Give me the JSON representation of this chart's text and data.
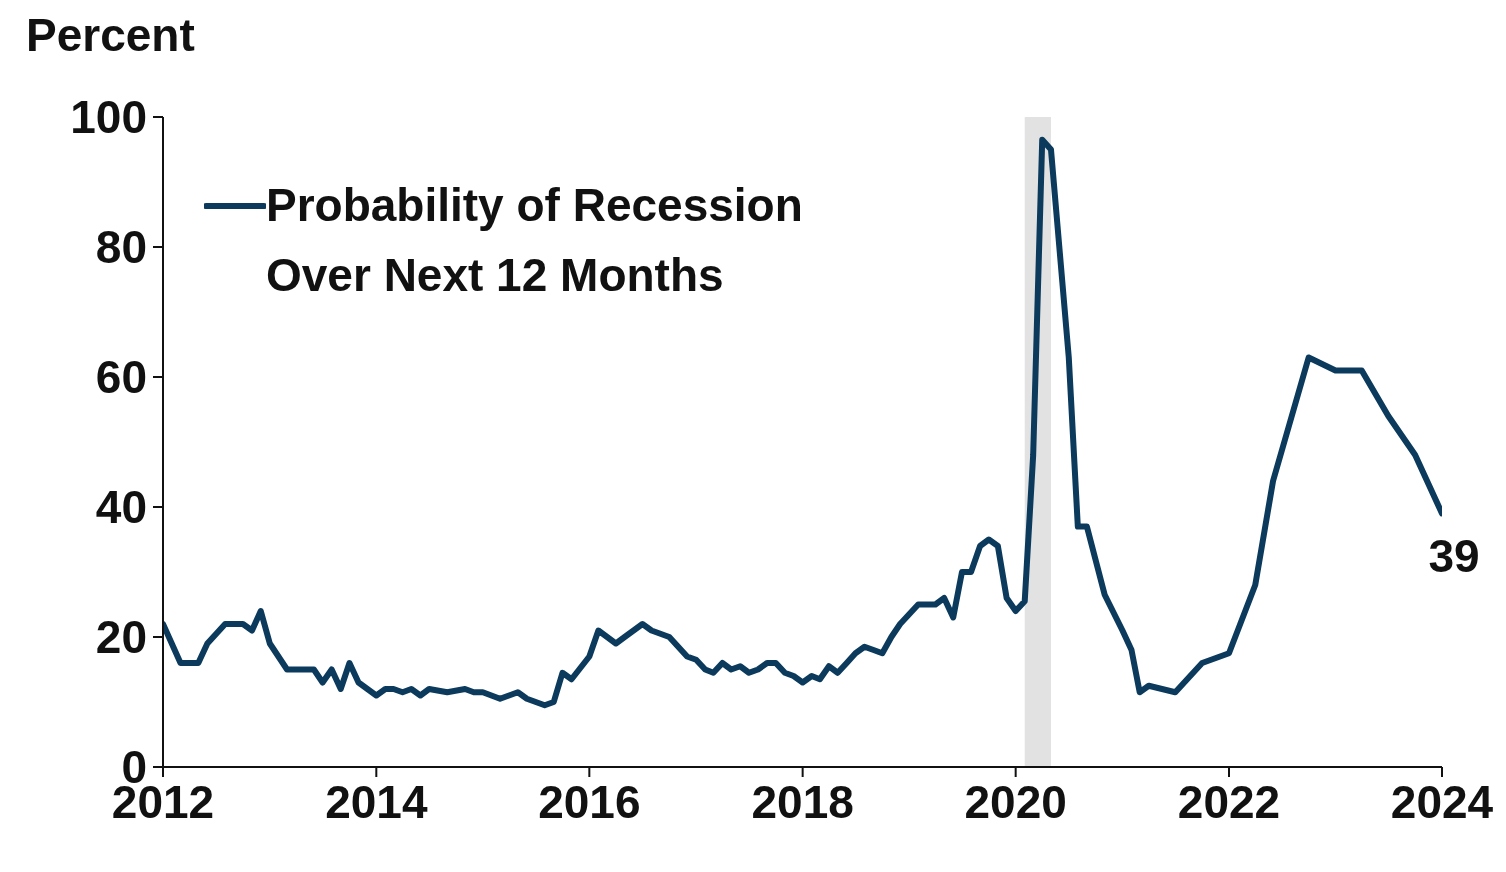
{
  "chart_data": {
    "type": "line",
    "ylabel": "Percent",
    "x": [
      "2012-01",
      "2012-03",
      "2012-05",
      "2012-06",
      "2012-08",
      "2012-10",
      "2012-11",
      "2012-12",
      "2013-01",
      "2013-03",
      "2013-06",
      "2013-07",
      "2013-08",
      "2013-09",
      "2013-10",
      "2013-11",
      "2014-01",
      "2014-02",
      "2014-03",
      "2014-04",
      "2014-05",
      "2014-06",
      "2014-07",
      "2014-09",
      "2014-11",
      "2014-12",
      "2015-01",
      "2015-03",
      "2015-05",
      "2015-06",
      "2015-08",
      "2015-09",
      "2015-10",
      "2015-11",
      "2016-01",
      "2016-02",
      "2016-04",
      "2016-05",
      "2016-07",
      "2016-08",
      "2016-10",
      "2016-12",
      "2017-01",
      "2017-02",
      "2017-03",
      "2017-04",
      "2017-05",
      "2017-06",
      "2017-07",
      "2017-08",
      "2017-09",
      "2017-10",
      "2017-11",
      "2017-12",
      "2018-01",
      "2018-02",
      "2018-03",
      "2018-04",
      "2018-05",
      "2018-06",
      "2018-07",
      "2018-08",
      "2018-09",
      "2018-10",
      "2018-11",
      "2018-12",
      "2019-02",
      "2019-04",
      "2019-05",
      "2019-06",
      "2019-07",
      "2019-08",
      "2019-09",
      "2019-10",
      "2019-11",
      "2019-12",
      "2020-01",
      "2020-02",
      "2020-03",
      "2020-04",
      "2020-05",
      "2020-07",
      "2020-08",
      "2020-09",
      "2020-11",
      "2021-01",
      "2021-02",
      "2021-03",
      "2021-04",
      "2021-07",
      "2021-10",
      "2022-01",
      "2022-04",
      "2022-06",
      "2022-10",
      "2023-01",
      "2023-04",
      "2023-07",
      "2023-10",
      "2024-01"
    ],
    "series": [
      {
        "name": "Probability of Recession Over Next 12 Months",
        "color": "#0b3a5c",
        "values": [
          22,
          16,
          16,
          19,
          22,
          22,
          21,
          24,
          19,
          15,
          15,
          13,
          15,
          12,
          16,
          13,
          11,
          12,
          12,
          11.5,
          12,
          11,
          12,
          11.5,
          12,
          11.5,
          11.5,
          10.5,
          11.5,
          10.5,
          9.5,
          10,
          14.5,
          13.5,
          17,
          21,
          19,
          20,
          22,
          21,
          20,
          17,
          16.5,
          15,
          14.5,
          16,
          15,
          15.5,
          14.5,
          15,
          16,
          16,
          14.5,
          14,
          13,
          14,
          13.5,
          15.5,
          14.5,
          16,
          17.5,
          18.5,
          18,
          17.5,
          20,
          22,
          25,
          25,
          26,
          23,
          30,
          30,
          34,
          35,
          34,
          26,
          24,
          25.5,
          48,
          96.5,
          95,
          63,
          37,
          37,
          26.5,
          21,
          18,
          11.5,
          12.5,
          11.5,
          16,
          17.5,
          28,
          44,
          63,
          61,
          61,
          54,
          48,
          39
        ]
      }
    ],
    "xlim": [
      "2012-01",
      "2024-01"
    ],
    "xticks": [
      {
        "value": "2012-01",
        "label": "2012"
      },
      {
        "value": "2014-01",
        "label": "2014"
      },
      {
        "value": "2016-01",
        "label": "2016"
      },
      {
        "value": "2018-01",
        "label": "2018"
      },
      {
        "value": "2020-01",
        "label": "2020"
      },
      {
        "value": "2022-01",
        "label": "2022"
      },
      {
        "value": "2024-01",
        "label": "2024"
      }
    ],
    "ylim": [
      0,
      100
    ],
    "yticks": [
      0,
      20,
      40,
      60,
      80,
      100
    ],
    "bands": [
      {
        "axis": "x",
        "from": "2020-02",
        "to": "2020-05",
        "color": "#e2e2e2"
      }
    ],
    "annotations": [
      {
        "text": "39",
        "x": "2024-01",
        "y": 39
      }
    ],
    "legend": "top left",
    "marker": "none",
    "line_style": "solid"
  }
}
